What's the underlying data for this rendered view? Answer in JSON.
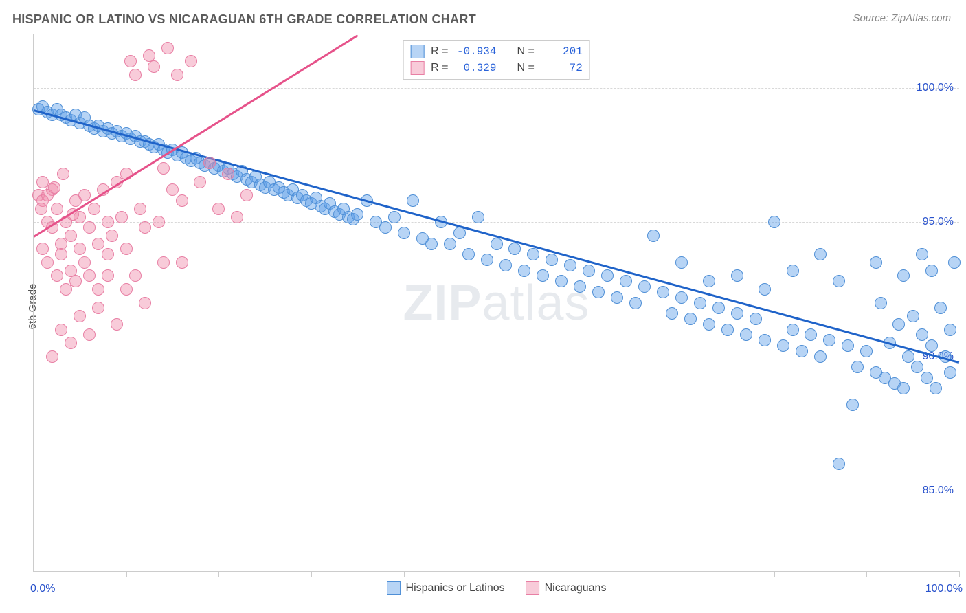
{
  "title": "HISPANIC OR LATINO VS NICARAGUAN 6TH GRADE CORRELATION CHART",
  "source": "Source: ZipAtlas.com",
  "ylabel": "6th Grade",
  "watermark_bold": "ZIP",
  "watermark_light": "atlas",
  "chart": {
    "type": "scatter",
    "background_color": "#ffffff",
    "grid_color": "#d8d8d8",
    "axis_color": "#cccccc",
    "label_color": "#2952cc",
    "xlim": [
      0,
      100
    ],
    "ylim": [
      82,
      102
    ],
    "x_range_labels": {
      "min": "0.0%",
      "max": "100.0%"
    },
    "x_ticks": [
      0,
      10,
      20,
      30,
      40,
      50,
      60,
      70,
      80,
      90,
      100
    ],
    "y_gridlines": [
      {
        "value": 100,
        "label": "100.0%"
      },
      {
        "value": 95,
        "label": "95.0%"
      },
      {
        "value": 90,
        "label": "90.0%"
      },
      {
        "value": 85,
        "label": "85.0%"
      }
    ],
    "series": [
      {
        "name": "Hispanics or Latinos",
        "fill_color": "rgba(96,160,232,0.45)",
        "stroke_color": "#4f8fd6",
        "trend_color": "#1f63c9",
        "marker_radius": 9,
        "R": "-0.934",
        "N": "201",
        "trend": {
          "x1": 0,
          "y1": 99.2,
          "x2": 100,
          "y2": 89.8
        },
        "points": [
          [
            0.5,
            99.2
          ],
          [
            1,
            99.3
          ],
          [
            1.5,
            99.1
          ],
          [
            2,
            99.0
          ],
          [
            2.5,
            99.2
          ],
          [
            3,
            99.0
          ],
          [
            3.5,
            98.9
          ],
          [
            4,
            98.8
          ],
          [
            4.5,
            99.0
          ],
          [
            5,
            98.7
          ],
          [
            5.5,
            98.9
          ],
          [
            6,
            98.6
          ],
          [
            6.5,
            98.5
          ],
          [
            7,
            98.6
          ],
          [
            7.5,
            98.4
          ],
          [
            8,
            98.5
          ],
          [
            8.5,
            98.3
          ],
          [
            9,
            98.4
          ],
          [
            9.5,
            98.2
          ],
          [
            10,
            98.3
          ],
          [
            10.5,
            98.1
          ],
          [
            11,
            98.2
          ],
          [
            11.5,
            98.0
          ],
          [
            12,
            98.0
          ],
          [
            12.5,
            97.9
          ],
          [
            13,
            97.8
          ],
          [
            13.5,
            97.9
          ],
          [
            14,
            97.7
          ],
          [
            14.5,
            97.6
          ],
          [
            15,
            97.7
          ],
          [
            15.5,
            97.5
          ],
          [
            16,
            97.6
          ],
          [
            16.5,
            97.4
          ],
          [
            17,
            97.3
          ],
          [
            17.5,
            97.4
          ],
          [
            18,
            97.2
          ],
          [
            18.5,
            97.1
          ],
          [
            19,
            97.2
          ],
          [
            19.5,
            97.0
          ],
          [
            20,
            97.1
          ],
          [
            20.5,
            96.9
          ],
          [
            21,
            97.0
          ],
          [
            21.5,
            96.8
          ],
          [
            22,
            96.7
          ],
          [
            22.5,
            96.9
          ],
          [
            23,
            96.6
          ],
          [
            23.5,
            96.5
          ],
          [
            24,
            96.7
          ],
          [
            24.5,
            96.4
          ],
          [
            25,
            96.3
          ],
          [
            25.5,
            96.5
          ],
          [
            26,
            96.2
          ],
          [
            26.5,
            96.3
          ],
          [
            27,
            96.1
          ],
          [
            27.5,
            96.0
          ],
          [
            28,
            96.2
          ],
          [
            28.5,
            95.9
          ],
          [
            29,
            96.0
          ],
          [
            29.5,
            95.8
          ],
          [
            30,
            95.7
          ],
          [
            30.5,
            95.9
          ],
          [
            31,
            95.6
          ],
          [
            31.5,
            95.5
          ],
          [
            32,
            95.7
          ],
          [
            32.5,
            95.4
          ],
          [
            33,
            95.3
          ],
          [
            33.5,
            95.5
          ],
          [
            34,
            95.2
          ],
          [
            34.5,
            95.1
          ],
          [
            35,
            95.3
          ],
          [
            36,
            95.8
          ],
          [
            37,
            95.0
          ],
          [
            38,
            94.8
          ],
          [
            39,
            95.2
          ],
          [
            40,
            94.6
          ],
          [
            41,
            95.8
          ],
          [
            42,
            94.4
          ],
          [
            43,
            94.2
          ],
          [
            44,
            95.0
          ],
          [
            45,
            94.2
          ],
          [
            46,
            94.6
          ],
          [
            47,
            93.8
          ],
          [
            48,
            95.2
          ],
          [
            49,
            93.6
          ],
          [
            50,
            94.2
          ],
          [
            51,
            93.4
          ],
          [
            52,
            94.0
          ],
          [
            53,
            93.2
          ],
          [
            54,
            93.8
          ],
          [
            55,
            93.0
          ],
          [
            56,
            93.6
          ],
          [
            57,
            92.8
          ],
          [
            58,
            93.4
          ],
          [
            59,
            92.6
          ],
          [
            60,
            93.2
          ],
          [
            61,
            92.4
          ],
          [
            62,
            93.0
          ],
          [
            63,
            92.2
          ],
          [
            64,
            92.8
          ],
          [
            65,
            92.0
          ],
          [
            66,
            92.6
          ],
          [
            67,
            94.5
          ],
          [
            68,
            92.4
          ],
          [
            69,
            91.6
          ],
          [
            70,
            92.2
          ],
          [
            71,
            91.4
          ],
          [
            72,
            92.0
          ],
          [
            73,
            91.2
          ],
          [
            74,
            91.8
          ],
          [
            75,
            91.0
          ],
          [
            76,
            91.6
          ],
          [
            77,
            90.8
          ],
          [
            78,
            91.4
          ],
          [
            79,
            90.6
          ],
          [
            80,
            95.0
          ],
          [
            81,
            90.4
          ],
          [
            82,
            91.0
          ],
          [
            83,
            90.2
          ],
          [
            84,
            90.8
          ],
          [
            85,
            90.0
          ],
          [
            86,
            90.6
          ],
          [
            87,
            92.8
          ],
          [
            88,
            90.4
          ],
          [
            89,
            89.6
          ],
          [
            90,
            90.2
          ],
          [
            91,
            89.4
          ],
          [
            91.5,
            92.0
          ],
          [
            92,
            89.2
          ],
          [
            92.5,
            90.5
          ],
          [
            93,
            89.0
          ],
          [
            93.5,
            91.2
          ],
          [
            94,
            88.8
          ],
          [
            94.5,
            90.0
          ],
          [
            95,
            91.5
          ],
          [
            95.5,
            89.6
          ],
          [
            96,
            90.8
          ],
          [
            96.5,
            89.2
          ],
          [
            97,
            90.4
          ],
          [
            97.5,
            88.8
          ],
          [
            98,
            91.8
          ],
          [
            98.5,
            90.0
          ],
          [
            99,
            89.4
          ],
          [
            99.5,
            93.5
          ],
          [
            87,
            86.0
          ],
          [
            88.5,
            88.2
          ],
          [
            96,
            93.8
          ],
          [
            99,
            91.0
          ],
          [
            97,
            93.2
          ],
          [
            94,
            93.0
          ],
          [
            91,
            93.5
          ],
          [
            85,
            93.8
          ],
          [
            82,
            93.2
          ],
          [
            79,
            92.5
          ],
          [
            76,
            93.0
          ],
          [
            73,
            92.8
          ],
          [
            70,
            93.5
          ]
        ]
      },
      {
        "name": "Nicaraguans",
        "fill_color": "rgba(240,140,170,0.45)",
        "stroke_color": "#e87fa4",
        "trend_color": "#e6528a",
        "marker_radius": 9,
        "R": "0.329",
        "N": "72",
        "trend": {
          "x1": 0,
          "y1": 94.5,
          "x2": 35,
          "y2": 102.0
        },
        "points": [
          [
            0.5,
            96.0
          ],
          [
            1,
            94.0
          ],
          [
            1,
            95.8
          ],
          [
            1.5,
            95.0
          ],
          [
            1.5,
            93.5
          ],
          [
            2,
            94.8
          ],
          [
            2,
            96.2
          ],
          [
            2.5,
            93.0
          ],
          [
            2.5,
            95.5
          ],
          [
            3,
            94.2
          ],
          [
            3,
            93.8
          ],
          [
            3.5,
            95.0
          ],
          [
            3.5,
            92.5
          ],
          [
            4,
            94.5
          ],
          [
            4,
            93.2
          ],
          [
            4.5,
            95.8
          ],
          [
            4.5,
            92.8
          ],
          [
            5,
            94.0
          ],
          [
            5,
            95.2
          ],
          [
            5.5,
            93.5
          ],
          [
            5.5,
            96.0
          ],
          [
            6,
            94.8
          ],
          [
            6,
            93.0
          ],
          [
            6.5,
            95.5
          ],
          [
            7,
            94.2
          ],
          [
            7,
            92.5
          ],
          [
            7.5,
            96.2
          ],
          [
            8,
            95.0
          ],
          [
            8,
            93.8
          ],
          [
            8.5,
            94.5
          ],
          [
            9,
            96.5
          ],
          [
            9.5,
            95.2
          ],
          [
            10,
            94.0
          ],
          [
            10,
            96.8
          ],
          [
            10.5,
            101.0
          ],
          [
            11,
            100.5
          ],
          [
            11.5,
            95.5
          ],
          [
            12,
            94.8
          ],
          [
            12.5,
            101.2
          ],
          [
            13,
            100.8
          ],
          [
            13.5,
            95.0
          ],
          [
            14,
            97.0
          ],
          [
            14.5,
            101.5
          ],
          [
            15,
            96.2
          ],
          [
            15.5,
            100.5
          ],
          [
            16,
            95.8
          ],
          [
            16,
            93.5
          ],
          [
            17,
            101.0
          ],
          [
            18,
            96.5
          ],
          [
            19,
            97.2
          ],
          [
            20,
            95.5
          ],
          [
            21,
            96.8
          ],
          [
            22,
            95.2
          ],
          [
            23,
            96.0
          ],
          [
            2,
            90.0
          ],
          [
            4,
            90.5
          ],
          [
            6,
            90.8
          ],
          [
            3,
            91.0
          ],
          [
            8,
            93.0
          ],
          [
            10,
            92.5
          ],
          [
            12,
            92.0
          ],
          [
            14,
            93.5
          ],
          [
            5,
            91.5
          ],
          [
            7,
            91.8
          ],
          [
            9,
            91.2
          ],
          [
            11,
            93.0
          ],
          [
            1,
            96.5
          ],
          [
            1.5,
            96.0
          ],
          [
            0.8,
            95.5
          ],
          [
            2.2,
            96.3
          ],
          [
            3.2,
            96.8
          ],
          [
            4.2,
            95.3
          ]
        ]
      }
    ]
  },
  "legend_bottom": [
    {
      "label": "Hispanics or Latinos",
      "fill": "rgba(96,160,232,0.45)",
      "stroke": "#4f8fd6"
    },
    {
      "label": "Nicaraguans",
      "fill": "rgba(240,140,170,0.45)",
      "stroke": "#e87fa4"
    }
  ],
  "legend_top_labels": {
    "R": "R =",
    "N": "N ="
  }
}
